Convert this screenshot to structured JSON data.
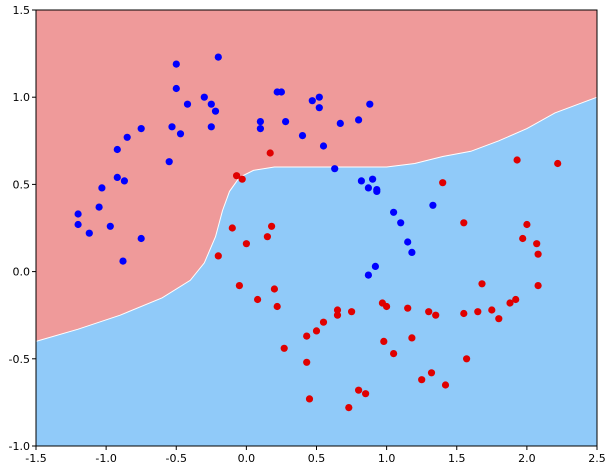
{
  "chart_data": {
    "type": "scatter",
    "title": "",
    "xlabel": "",
    "ylabel": "",
    "xlim": [
      -1.5,
      2.5
    ],
    "ylim": [
      -1.0,
      1.5
    ],
    "xticks": [
      "-1.5",
      "-1.0",
      "-0.5",
      "0.0",
      "0.5",
      "1.0",
      "1.5",
      "2.0",
      "2.5"
    ],
    "yticks": [
      "-1.0",
      "-0.5",
      "0.0",
      "0.5",
      "1.0",
      "1.5"
    ],
    "grid": false,
    "decision_regions": [
      {
        "class": 0,
        "color": "#ef9a9a"
      },
      {
        "class": 1,
        "color": "#90caf9"
      }
    ],
    "decision_boundary": [
      [
        -1.5,
        -0.4
      ],
      [
        -1.2,
        -0.33
      ],
      [
        -0.9,
        -0.25
      ],
      [
        -0.6,
        -0.15
      ],
      [
        -0.4,
        -0.05
      ],
      [
        -0.3,
        0.05
      ],
      [
        -0.22,
        0.2
      ],
      [
        -0.17,
        0.35
      ],
      [
        -0.12,
        0.46
      ],
      [
        -0.05,
        0.54
      ],
      [
        0.05,
        0.58
      ],
      [
        0.2,
        0.6
      ],
      [
        0.5,
        0.6
      ],
      [
        0.8,
        0.6
      ],
      [
        1.0,
        0.6
      ],
      [
        1.2,
        0.62
      ],
      [
        1.4,
        0.66
      ],
      [
        1.6,
        0.69
      ],
      [
        1.8,
        0.75
      ],
      [
        2.0,
        0.82
      ],
      [
        2.2,
        0.91
      ],
      [
        2.5,
        1.0
      ]
    ],
    "series": [
      {
        "color": "#0000ff",
        "points": [
          [
            -1.2,
            0.33
          ],
          [
            -1.2,
            0.27
          ],
          [
            -1.12,
            0.22
          ],
          [
            -1.05,
            0.37
          ],
          [
            -1.03,
            0.48
          ],
          [
            -0.97,
            0.26
          ],
          [
            -0.92,
            0.54
          ],
          [
            -0.92,
            0.7
          ],
          [
            -0.88,
            0.06
          ],
          [
            -0.87,
            0.52
          ],
          [
            -0.85,
            0.77
          ],
          [
            -0.75,
            0.19
          ],
          [
            -0.75,
            0.82
          ],
          [
            -0.55,
            0.63
          ],
          [
            -0.53,
            0.83
          ],
          [
            -0.5,
            1.19
          ],
          [
            -0.5,
            1.05
          ],
          [
            -0.47,
            0.79
          ],
          [
            -0.42,
            0.96
          ],
          [
            -0.3,
            1.0
          ],
          [
            -0.25,
            0.83
          ],
          [
            -0.25,
            0.96
          ],
          [
            -0.22,
            0.92
          ],
          [
            -0.2,
            1.23
          ],
          [
            0.1,
            0.86
          ],
          [
            0.1,
            0.82
          ],
          [
            0.22,
            1.03
          ],
          [
            0.25,
            1.03
          ],
          [
            0.28,
            0.86
          ],
          [
            0.4,
            0.78
          ],
          [
            0.47,
            0.98
          ],
          [
            0.52,
            1.0
          ],
          [
            0.52,
            0.94
          ],
          [
            0.55,
            0.72
          ],
          [
            0.63,
            0.59
          ],
          [
            0.67,
            0.85
          ],
          [
            0.8,
            0.87
          ],
          [
            0.82,
            0.52
          ],
          [
            0.87,
            0.48
          ],
          [
            0.88,
            0.96
          ],
          [
            0.9,
            0.53
          ],
          [
            0.93,
            0.47
          ],
          [
            0.93,
            0.46
          ],
          [
            1.05,
            0.34
          ],
          [
            1.1,
            0.28
          ],
          [
            1.15,
            0.17
          ],
          [
            1.18,
            0.11
          ],
          [
            0.87,
            -0.02
          ],
          [
            0.92,
            0.03
          ],
          [
            1.33,
            0.38
          ]
        ]
      },
      {
        "color": "#e00000",
        "points": [
          [
            -0.07,
            0.55
          ],
          [
            -0.03,
            0.53
          ],
          [
            0.17,
            0.68
          ],
          [
            -0.1,
            0.25
          ],
          [
            -0.2,
            0.09
          ],
          [
            -0.05,
            -0.08
          ],
          [
            0.0,
            0.16
          ],
          [
            0.08,
            -0.16
          ],
          [
            0.15,
            0.2
          ],
          [
            0.18,
            0.26
          ],
          [
            0.2,
            -0.1
          ],
          [
            0.22,
            -0.2
          ],
          [
            0.27,
            -0.44
          ],
          [
            0.43,
            -0.37
          ],
          [
            0.43,
            -0.52
          ],
          [
            0.45,
            -0.73
          ],
          [
            0.5,
            -0.34
          ],
          [
            0.55,
            -0.29
          ],
          [
            0.65,
            -0.25
          ],
          [
            0.65,
            -0.22
          ],
          [
            0.73,
            -0.78
          ],
          [
            0.75,
            -0.23
          ],
          [
            0.8,
            -0.68
          ],
          [
            0.85,
            -0.7
          ],
          [
            0.97,
            -0.18
          ],
          [
            0.98,
            -0.4
          ],
          [
            1.0,
            -0.2
          ],
          [
            1.05,
            -0.47
          ],
          [
            1.15,
            -0.21
          ],
          [
            1.18,
            -0.38
          ],
          [
            1.25,
            -0.62
          ],
          [
            1.3,
            -0.23
          ],
          [
            1.32,
            -0.58
          ],
          [
            1.35,
            -0.25
          ],
          [
            1.4,
            0.51
          ],
          [
            1.42,
            -0.65
          ],
          [
            1.55,
            0.28
          ],
          [
            1.55,
            -0.24
          ],
          [
            1.57,
            -0.5
          ],
          [
            1.65,
            -0.23
          ],
          [
            1.68,
            -0.07
          ],
          [
            1.75,
            -0.22
          ],
          [
            1.8,
            -0.27
          ],
          [
            1.88,
            -0.18
          ],
          [
            1.92,
            -0.16
          ],
          [
            1.93,
            0.64
          ],
          [
            1.97,
            0.19
          ],
          [
            2.0,
            0.27
          ],
          [
            2.07,
            0.16
          ],
          [
            2.08,
            -0.08
          ],
          [
            2.08,
            0.1
          ],
          [
            2.22,
            0.62
          ]
        ]
      }
    ]
  }
}
